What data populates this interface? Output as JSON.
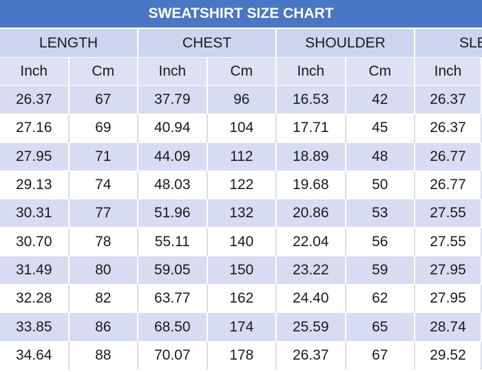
{
  "title": "SWEATSHIRT SIZE CHART",
  "table": {
    "groups": [
      "LENGTH",
      "CHEST",
      "SHOULDER",
      "SLE"
    ],
    "units": [
      "Inch",
      "Cm",
      "Inch",
      "Cm",
      "Inch",
      "Cm",
      "Inch"
    ],
    "rows": [
      [
        "26.37",
        "67",
        "37.79",
        "96",
        "16.53",
        "42",
        "26.37"
      ],
      [
        "27.16",
        "69",
        "40.94",
        "104",
        "17.71",
        "45",
        "26.37"
      ],
      [
        "27.95",
        "71",
        "44.09",
        "112",
        "18.89",
        "48",
        "26.77"
      ],
      [
        "29.13",
        "74",
        "48.03",
        "122",
        "19.68",
        "50",
        "26.77"
      ],
      [
        "30.31",
        "77",
        "51.96",
        "132",
        "20.86",
        "53",
        "27.55"
      ],
      [
        "30.70",
        "78",
        "55.11",
        "140",
        "22.04",
        "56",
        "27.55"
      ],
      [
        "31.49",
        "80",
        "59.05",
        "150",
        "23.22",
        "59",
        "27.95"
      ],
      [
        "32.28",
        "82",
        "63.77",
        "162",
        "24.40",
        "62",
        "27.95"
      ],
      [
        "33.85",
        "86",
        "68.50",
        "174",
        "25.59",
        "65",
        "28.74"
      ],
      [
        "34.64",
        "88",
        "70.07",
        "178",
        "26.37",
        "67",
        "29.52"
      ]
    ]
  }
}
